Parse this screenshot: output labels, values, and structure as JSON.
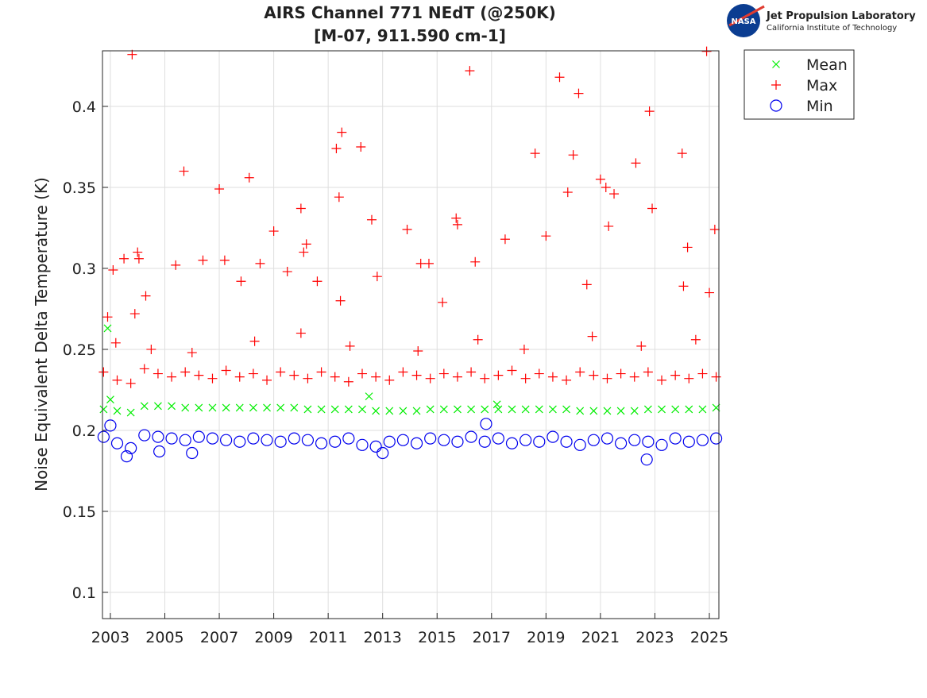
{
  "chart_data": {
    "type": "scatter",
    "title": "AIRS Channel 771 NEdT (@250K)",
    "subtitle": "[M-07, 911.590 cm-1]",
    "y_label": "Noise Equivalent Delta Temperature (K)",
    "xlim": [
      2002.71,
      2025.35
    ],
    "ylim": [
      0.0838,
      0.4343
    ],
    "xticks": [
      2003,
      2005,
      2007,
      2009,
      2011,
      2013,
      2015,
      2017,
      2019,
      2021,
      2023,
      2025
    ],
    "yticks": [
      0.1,
      0.15,
      0.2,
      0.25,
      0.3,
      0.35,
      0.4
    ],
    "grid": true,
    "legend": "outside-top-right",
    "logo": {
      "badge": "NASA",
      "name": "Jet Propulsion Laboratory",
      "subtitle": "California Institute of Technology"
    },
    "series": [
      {
        "name": "Mean",
        "color": "#00ee00",
        "marker": "x",
        "x": [
          2002.75,
          2003.25,
          2003.75,
          2004.25,
          2004.75,
          2005.25,
          2005.75,
          2006.25,
          2006.75,
          2007.25,
          2007.75,
          2008.25,
          2008.75,
          2009.25,
          2009.75,
          2010.25,
          2010.75,
          2011.25,
          2011.75,
          2012.25,
          2012.75,
          2013.25,
          2013.75,
          2014.25,
          2014.75,
          2015.25,
          2015.75,
          2016.25,
          2016.75,
          2017.25,
          2017.75,
          2018.25,
          2018.75,
          2019.25,
          2019.75,
          2020.25,
          2020.75,
          2021.25,
          2021.75,
          2022.25,
          2022.75,
          2023.25,
          2023.75,
          2024.25,
          2024.75,
          2025.25,
          2002.9,
          2003.0,
          2012.5,
          2017.2
        ],
        "values": [
          0.213,
          0.212,
          0.211,
          0.215,
          0.215,
          0.215,
          0.214,
          0.214,
          0.214,
          0.214,
          0.214,
          0.214,
          0.214,
          0.214,
          0.214,
          0.213,
          0.213,
          0.213,
          0.213,
          0.213,
          0.212,
          0.212,
          0.212,
          0.212,
          0.213,
          0.213,
          0.213,
          0.213,
          0.213,
          0.213,
          0.213,
          0.213,
          0.213,
          0.213,
          0.213,
          0.212,
          0.212,
          0.212,
          0.212,
          0.212,
          0.213,
          0.213,
          0.213,
          0.213,
          0.213,
          0.214,
          0.263,
          0.219,
          0.221,
          0.216
        ]
      },
      {
        "name": "Max",
        "color": "#ff0000",
        "marker": "+",
        "x": [
          2002.75,
          2003.25,
          2003.75,
          2004.25,
          2004.75,
          2005.25,
          2005.75,
          2006.25,
          2006.75,
          2007.25,
          2007.75,
          2008.25,
          2008.75,
          2009.25,
          2009.75,
          2010.25,
          2010.75,
          2011.25,
          2011.75,
          2012.25,
          2012.75,
          2013.25,
          2013.75,
          2014.25,
          2014.75,
          2015.25,
          2015.75,
          2016.25,
          2016.75,
          2017.25,
          2017.75,
          2018.25,
          2018.75,
          2019.25,
          2019.75,
          2020.25,
          2020.75,
          2021.25,
          2021.75,
          2022.25,
          2022.75,
          2023.25,
          2023.75,
          2024.25,
          2024.75,
          2025.25,
          2004.5,
          2006.0,
          2008.3,
          2010.0,
          2011.8,
          2014.3,
          2016.5,
          2018.2,
          2020.7,
          2022.5,
          2024.5,
          2003.2,
          2003.8,
          2002.9,
          2003.1,
          2003.5,
          2004.0,
          2004.05,
          2004.3,
          2003.9,
          2005.4,
          2005.7,
          2006.4,
          2007.0,
          2007.2,
          2007.8,
          2008.1,
          2008.5,
          2009.0,
          2009.5,
          2010.0,
          2010.2,
          2010.1,
          2010.6,
          2011.3,
          2011.5,
          2011.4,
          2011.45,
          2012.2,
          2012.6,
          2012.8,
          2013.9,
          2014.4,
          2014.7,
          2015.2,
          2015.7,
          2015.75,
          2016.2,
          2016.4,
          2017.5,
          2018.6,
          2019.0,
          2019.5,
          2019.8,
          2020.0,
          2020.2,
          2020.5,
          2021.0,
          2021.2,
          2021.3,
          2021.5,
          2022.3,
          2022.8,
          2022.9,
          2024.0,
          2024.2,
          2024.05,
          2024.9,
          2025.2,
          2025.0
        ],
        "values": [
          0.236,
          0.231,
          0.229,
          0.238,
          0.235,
          0.233,
          0.236,
          0.234,
          0.232,
          0.237,
          0.233,
          0.235,
          0.231,
          0.236,
          0.234,
          0.232,
          0.236,
          0.233,
          0.23,
          0.235,
          0.233,
          0.231,
          0.236,
          0.234,
          0.232,
          0.235,
          0.233,
          0.236,
          0.232,
          0.234,
          0.237,
          0.232,
          0.235,
          0.233,
          0.231,
          0.236,
          0.234,
          0.232,
          0.235,
          0.233,
          0.236,
          0.231,
          0.234,
          0.232,
          0.235,
          0.233,
          0.25,
          0.248,
          0.255,
          0.26,
          0.252,
          0.249,
          0.256,
          0.25,
          0.258,
          0.252,
          0.256,
          0.254,
          0.432,
          0.27,
          0.299,
          0.306,
          0.31,
          0.306,
          0.283,
          0.272,
          0.302,
          0.36,
          0.305,
          0.349,
          0.305,
          0.292,
          0.356,
          0.303,
          0.323,
          0.298,
          0.337,
          0.315,
          0.31,
          0.292,
          0.374,
          0.384,
          0.344,
          0.28,
          0.375,
          0.33,
          0.295,
          0.324,
          0.303,
          0.303,
          0.279,
          0.331,
          0.327,
          0.422,
          0.304,
          0.318,
          0.371,
          0.32,
          0.418,
          0.347,
          0.37,
          0.408,
          0.29,
          0.355,
          0.35,
          0.326,
          0.346,
          0.365,
          0.397,
          0.337,
          0.371,
          0.313,
          0.289,
          0.434,
          0.324,
          0.285
        ]
      },
      {
        "name": "Min",
        "color": "#0000ee",
        "marker": "o",
        "x": [
          2002.75,
          2003.25,
          2003.75,
          2004.25,
          2004.75,
          2005.25,
          2005.75,
          2006.25,
          2006.75,
          2007.25,
          2007.75,
          2008.25,
          2008.75,
          2009.25,
          2009.75,
          2010.25,
          2010.75,
          2011.25,
          2011.75,
          2012.25,
          2012.75,
          2013.25,
          2013.75,
          2014.25,
          2014.75,
          2015.25,
          2015.75,
          2016.25,
          2016.75,
          2017.25,
          2017.75,
          2018.25,
          2018.75,
          2019.25,
          2019.75,
          2020.25,
          2020.75,
          2021.25,
          2021.75,
          2022.25,
          2022.75,
          2023.25,
          2023.75,
          2024.25,
          2024.75,
          2025.25,
          2003.0,
          2003.6,
          2004.8,
          2013.0,
          2016.8,
          2022.7,
          2006.0
        ],
        "values": [
          0.196,
          0.192,
          0.189,
          0.197,
          0.196,
          0.195,
          0.194,
          0.196,
          0.195,
          0.194,
          0.193,
          0.195,
          0.194,
          0.193,
          0.195,
          0.194,
          0.192,
          0.193,
          0.195,
          0.191,
          0.19,
          0.193,
          0.194,
          0.192,
          0.195,
          0.194,
          0.193,
          0.196,
          0.193,
          0.195,
          0.192,
          0.194,
          0.193,
          0.196,
          0.193,
          0.191,
          0.194,
          0.195,
          0.192,
          0.194,
          0.193,
          0.191,
          0.195,
          0.193,
          0.194,
          0.195,
          0.203,
          0.184,
          0.187,
          0.186,
          0.204,
          0.182,
          0.186
        ]
      }
    ]
  }
}
